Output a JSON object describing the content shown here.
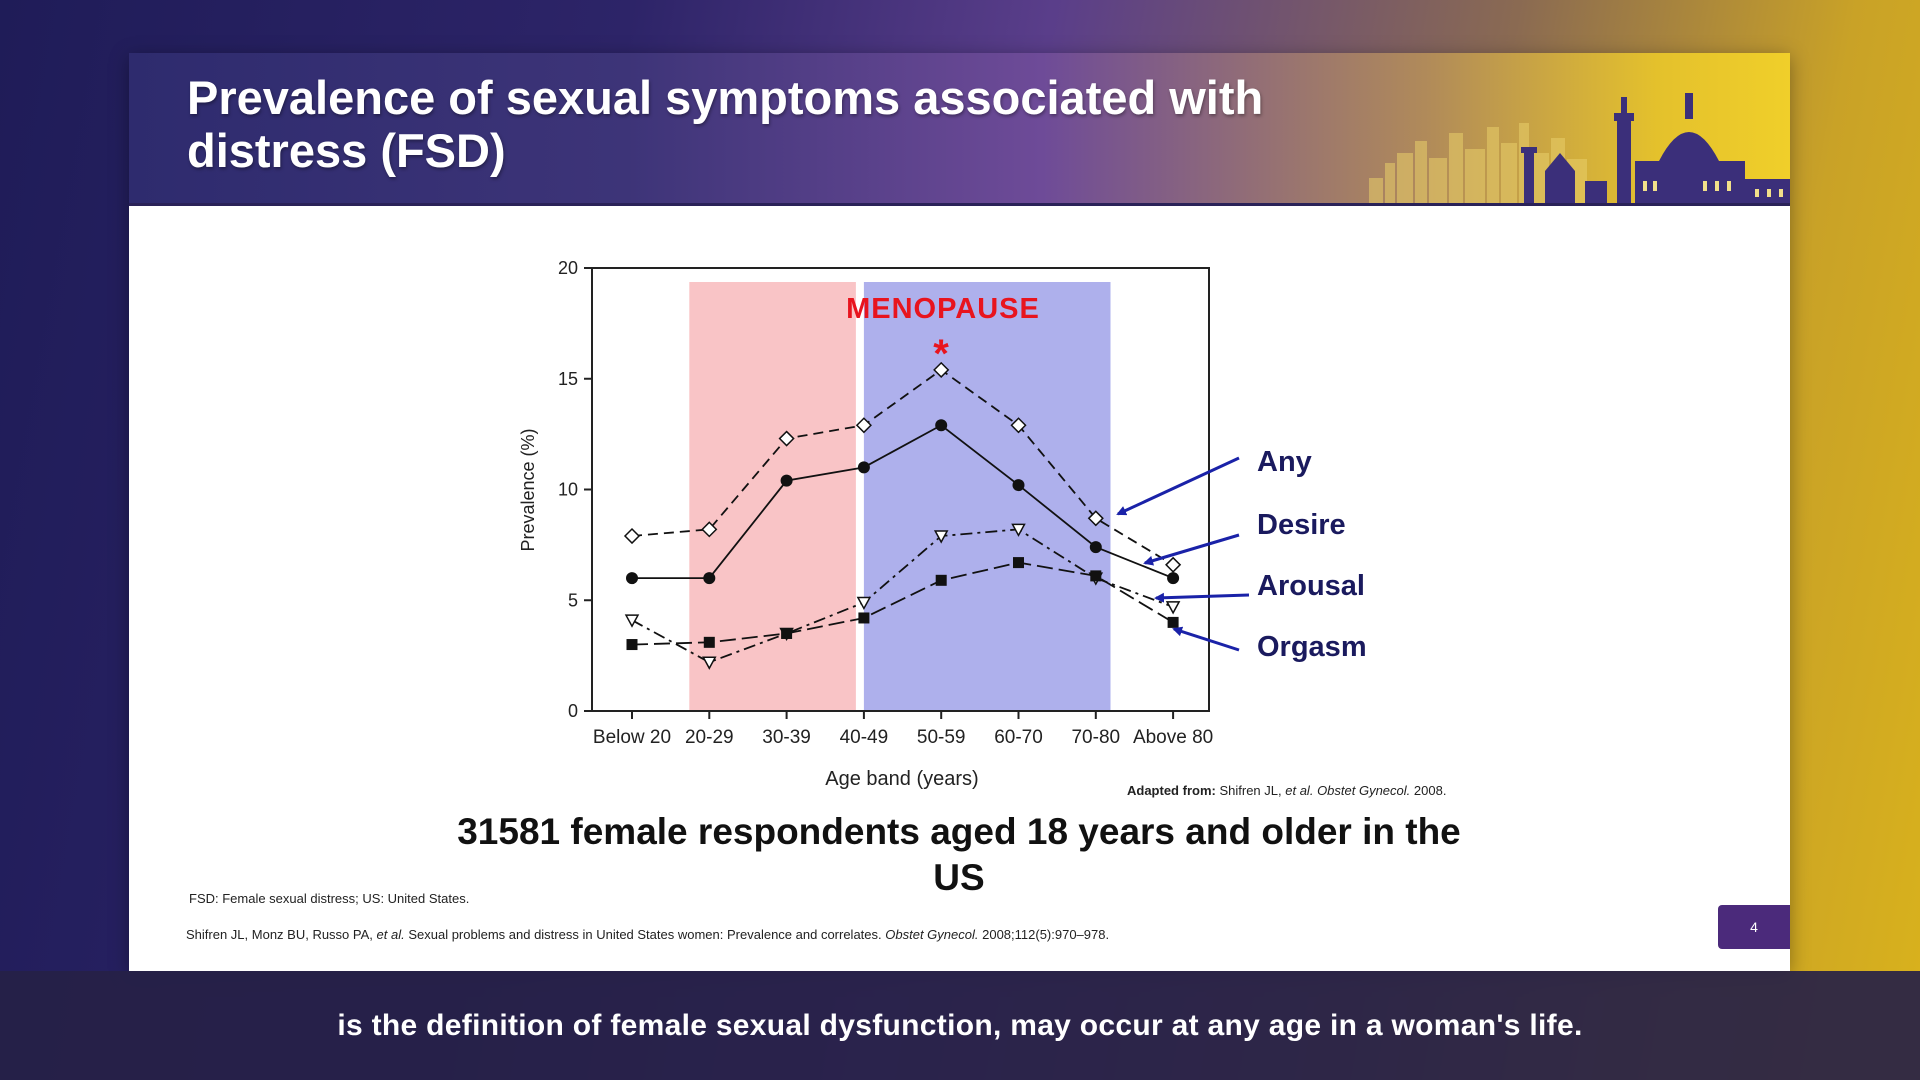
{
  "slide": {
    "title": "Prevalence of sexual symptoms associated with distress (FSD)",
    "page_number": "4",
    "source_label": "Adapted from:",
    "source_authors": "Shifren JL,",
    "source_etal": "et al.",
    "source_journal": "Obstet Gynecol.",
    "source_year": "2008.",
    "headline": "31581 female respondents aged 18 years and older in the US",
    "abbreviations": "FSD: Female sexual distress; US: United States.",
    "reference_authors": "Shifren JL, Monz BU, Russo PA,",
    "reference_etal": "et al.",
    "reference_title": "Sexual problems and distress in United States women: Prevalence and correlates.",
    "reference_journal": "Obstet Gynecol.",
    "reference_details": "2008;112(5):970–978."
  },
  "caption": {
    "text": "is the definition of female sexual dysfunction, may occur at any age in a woman's life."
  },
  "colors": {
    "banner_start": "#2e2b6e",
    "banner_end": "#f0cf2a",
    "pink_band": "#f9c4c6",
    "blue_band": "#aeb0ec",
    "menopause_red": "#e8141e",
    "arrow_blue": "#1a22a8",
    "page_badge": "#4b2a7b"
  },
  "chart_data": {
    "type": "line",
    "title": "",
    "xlabel": "Age band (years)",
    "ylabel": "Prevalence (%)",
    "ylim": [
      0,
      20
    ],
    "yticks": [
      "0",
      "5",
      "10",
      "15",
      "20"
    ],
    "categories": [
      "Below 20",
      "20-29",
      "30-39",
      "40-49",
      "50-59",
      "60-70",
      "70-80",
      "Above 80"
    ],
    "annotation": "MENOPAUSE",
    "asterisk": "*",
    "highlight_bands": [
      {
        "from_category": "20-29",
        "to_category": "40-49",
        "color": "pink"
      },
      {
        "from_category": "40-49",
        "to_category": "60-70",
        "color": "blue"
      }
    ],
    "series": [
      {
        "name": "Any",
        "marker": "open-diamond",
        "line": "dashed",
        "values": [
          7.9,
          8.2,
          12.3,
          12.9,
          15.4,
          12.9,
          8.7,
          6.6
        ]
      },
      {
        "name": "Desire",
        "marker": "filled-circle",
        "line": "solid",
        "values": [
          6.0,
          6.0,
          10.4,
          11.0,
          12.9,
          10.2,
          7.4,
          6.0
        ]
      },
      {
        "name": "Arousal",
        "marker": "open-triangle-down",
        "line": "dash-dot",
        "values": [
          4.1,
          2.2,
          3.5,
          4.9,
          7.9,
          8.2,
          6.0,
          4.7
        ]
      },
      {
        "name": "Orgasm",
        "marker": "filled-square",
        "line": "long-dash",
        "values": [
          3.0,
          3.1,
          3.5,
          4.2,
          5.9,
          6.7,
          6.1,
          4.0
        ]
      }
    ]
  }
}
